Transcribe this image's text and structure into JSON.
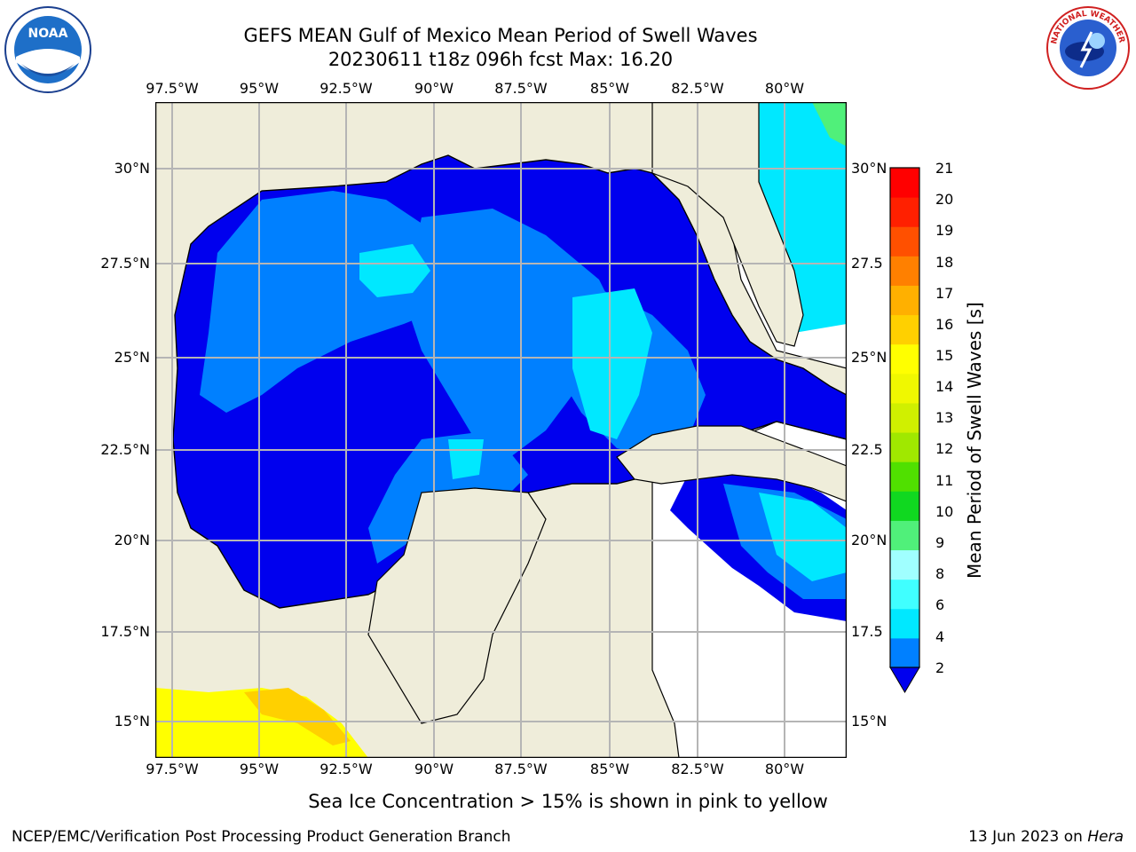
{
  "title": {
    "line1": "GEFS MEAN Gulf of Mexico Mean Period of Swell Waves",
    "line2": "20230611 t18z 096h fcst   Max: 16.20"
  },
  "map": {
    "lon_labels": [
      "97.5°W",
      "95°W",
      "92.5°W",
      "90°W",
      "87.5°W",
      "85°W",
      "82.5°W",
      "80°W"
    ],
    "lat_labels_left": [
      "30°N",
      "27.5°N",
      "25°N",
      "22.5°N",
      "20°N",
      "17.5°N",
      "15°N"
    ],
    "lat_labels_right": [
      "30°N",
      "27.5",
      "25°N",
      "22.5",
      "20°N",
      "17.5",
      "15°N"
    ],
    "colors": {
      "land": "#efedda",
      "ocean_missing": "#ffffff",
      "grid": "#b5b5b5",
      "coast": "#000000"
    }
  },
  "colorbar": {
    "label": "Mean Period of Swell Waves [s]",
    "ticks": [
      "21",
      "20",
      "19",
      "18",
      "17",
      "16",
      "15",
      "14",
      "13",
      "12",
      "11",
      "10",
      "9",
      "8",
      "6",
      "4",
      "2"
    ],
    "colors": [
      "#0000ee",
      "#0080ff",
      "#00e8ff",
      "#40ffff",
      "#a0ffff",
      "#50f07a",
      "#10d820",
      "#50e000",
      "#a0e800",
      "#d0f000",
      "#f0f800",
      "#ffff00",
      "#ffd000",
      "#ffb000",
      "#ff8000",
      "#ff5000",
      "#ff2000",
      "#ff0000"
    ]
  },
  "logos": {
    "noaa_text": "NOAA",
    "nws_text": "NATIONAL WEATHER SERVICE"
  },
  "footer": {
    "note": "Sea Ice Concentration > 15% is shown in pink to yellow",
    "credit": "NCEP/EMC/Verification Post Processing Product Generation Branch",
    "date_prefix": "13 Jun 2023 on ",
    "date_machine": "Hera"
  }
}
